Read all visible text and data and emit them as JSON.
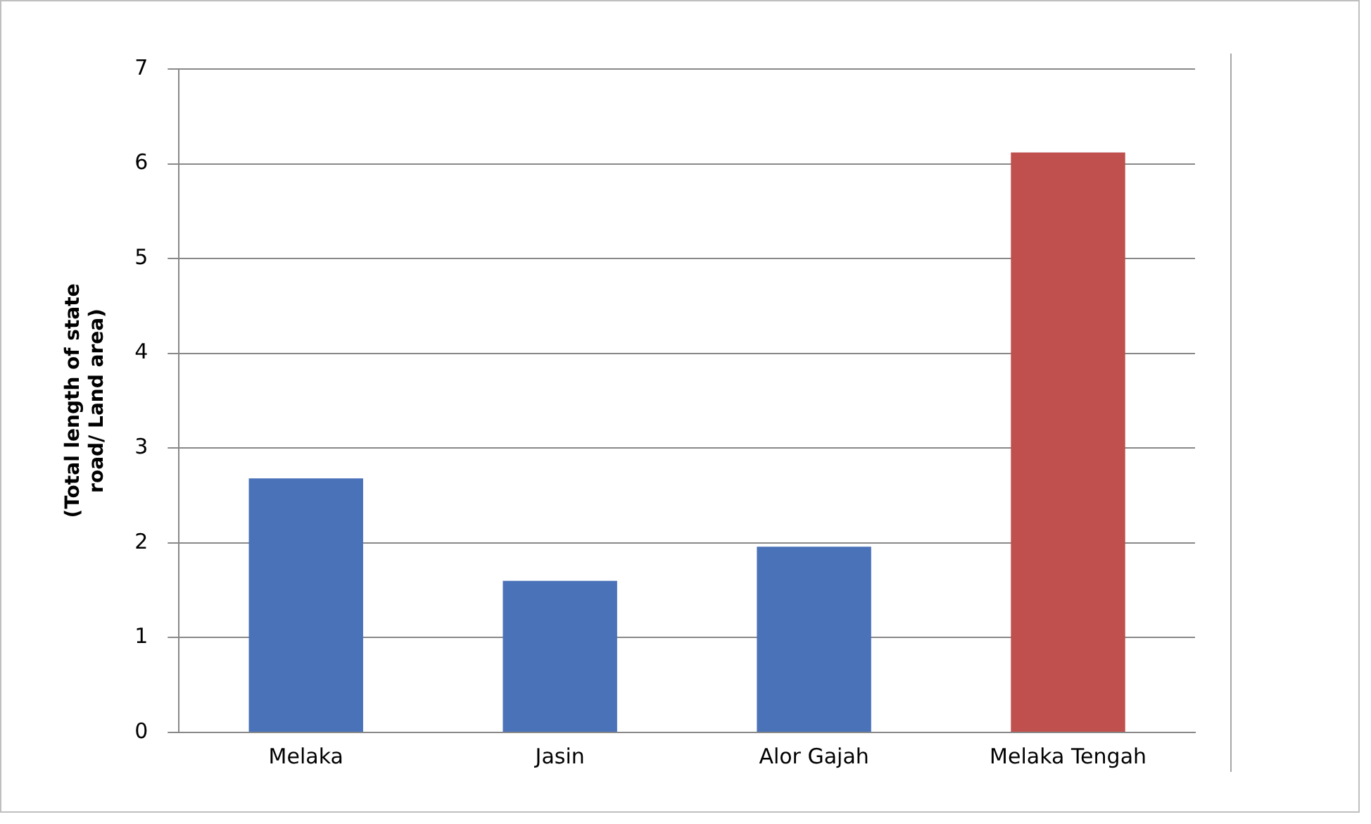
{
  "chart_data": {
    "type": "bar",
    "ylabel": "(Total length of state road/ Land area)",
    "categories": [
      "Melaka",
      "Jasin",
      "Alor Gajah",
      "Melaka Tengah"
    ],
    "values": [
      2.68,
      1.6,
      1.96,
      6.12
    ],
    "colors": [
      "#4a72b8",
      "#4a72b8",
      "#4a72b8",
      "#c0504d"
    ],
    "ylim": [
      0,
      7
    ],
    "yticks": [
      0,
      1,
      2,
      3,
      4,
      5,
      6,
      7
    ],
    "grid": "y",
    "legend": false
  }
}
